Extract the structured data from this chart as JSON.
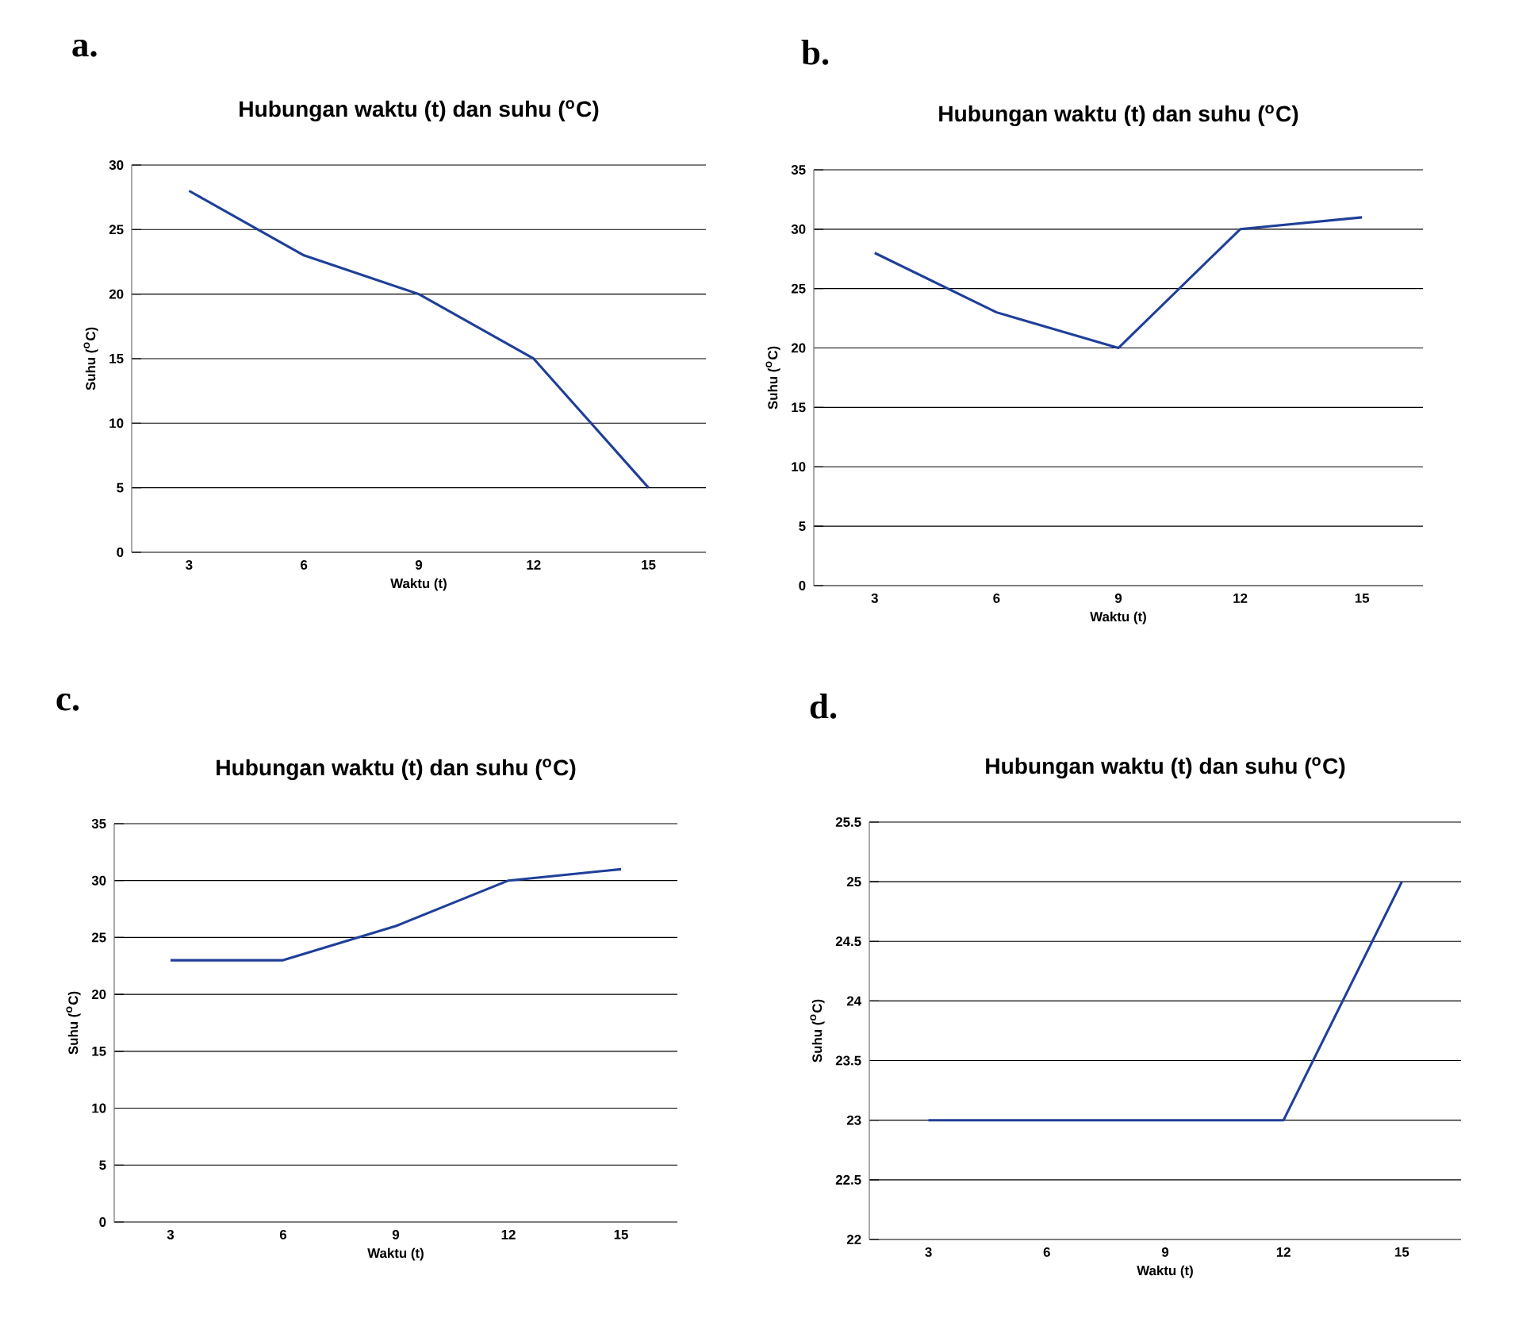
{
  "chart_data": [
    {
      "type": "line",
      "title": "Hubungan waktu (t) dan suhu ($^{o}$C)",
      "xlabel": "Waktu (t)",
      "ylabel": "Suhu ($^{o}$C)",
      "annotations": [
        "a."
      ],
      "categories": [
        "3",
        "6",
        "9",
        "12",
        "15"
      ],
      "values": [
        28,
        23,
        20,
        15,
        5
      ],
      "color": "#1f3f99",
      "ylim": [
        0,
        30
      ],
      "yticks": [
        0,
        5,
        10,
        15,
        20,
        25,
        30
      ],
      "grid": "y",
      "marker": "none"
    },
    {
      "type": "line",
      "title": "Hubungan waktu (t) dan suhu ($^{o}$C)",
      "xlabel": "Waktu (t)",
      "ylabel": "Suhu ($^{o}$C)",
      "annotations": [
        "b."
      ],
      "categories": [
        "3",
        "6",
        "9",
        "12",
        "15"
      ],
      "values": [
        28,
        23,
        20,
        30,
        31
      ],
      "color": "#1f3f99",
      "ylim": [
        0,
        35
      ],
      "yticks": [
        0,
        5,
        10,
        15,
        20,
        25,
        30,
        35
      ],
      "grid": "y",
      "marker": "none"
    },
    {
      "type": "line",
      "title": "Hubungan waktu (t) dan suhu ($^{o}$C)",
      "xlabel": "Waktu (t)",
      "ylabel": "Suhu ($^{o}$C)",
      "annotations": [
        "c."
      ],
      "categories": [
        "3",
        "6",
        "9",
        "12",
        "15"
      ],
      "values": [
        23,
        23,
        26,
        30,
        31
      ],
      "color": "#1f3f99",
      "ylim": [
        0,
        35
      ],
      "yticks": [
        0,
        5,
        10,
        15,
        20,
        25,
        30,
        35
      ],
      "grid": "y",
      "marker": "none"
    },
    {
      "type": "line",
      "title": "Hubungan waktu (t) dan suhu ($^{o}$C)",
      "xlabel": "Waktu (t)",
      "ylabel": "Suhu ($^{o}$C)",
      "annotations": [
        "d."
      ],
      "categories": [
        "3",
        "6",
        "9",
        "12",
        "15"
      ],
      "values": [
        23,
        23,
        23,
        23,
        25
      ],
      "color": "#1f3f99",
      "ylim": [
        22,
        25.5
      ],
      "yticks": [
        22,
        22.5,
        23,
        23.5,
        24,
        24.5,
        25,
        25.5
      ],
      "grid": "y",
      "marker": "none"
    }
  ]
}
